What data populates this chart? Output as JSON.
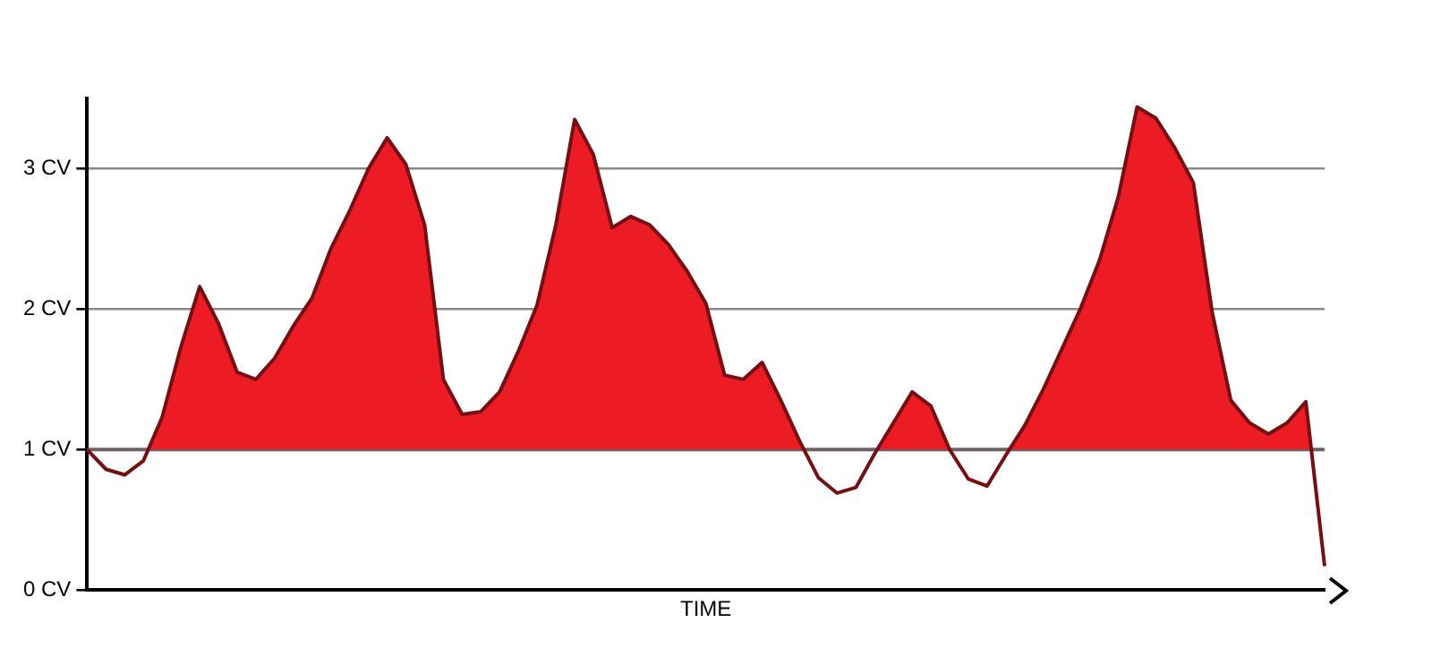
{
  "chart_data": {
    "type": "area",
    "xlabel": "TIME",
    "ylim": [
      0,
      3.5
    ],
    "yticks": [
      {
        "value": 0,
        "label": "0 CV"
      },
      {
        "value": 1,
        "label": "1 CV"
      },
      {
        "value": 2,
        "label": "2 CV"
      },
      {
        "value": 3,
        "label": "3 CV"
      }
    ],
    "tick_labels": "y",
    "grid": "y",
    "legend": false,
    "marker": "none",
    "line_style": "solid",
    "ref_lines": [
      {
        "axis": "y",
        "value": 1,
        "color": "#666666"
      }
    ],
    "categories": [
      null,
      null,
      null,
      null,
      null,
      null,
      null,
      null,
      null,
      null,
      null,
      null,
      null,
      null,
      null,
      null,
      null,
      null,
      null,
      null,
      null,
      null,
      null,
      null,
      null,
      null,
      null,
      null,
      null,
      null,
      null,
      null,
      null,
      null,
      null,
      null,
      null,
      null,
      null,
      null,
      null,
      null,
      null,
      null,
      null,
      null,
      null,
      null,
      null,
      null,
      null,
      null,
      null,
      null,
      null,
      null,
      null,
      null,
      null,
      null,
      null,
      null,
      null,
      null,
      null,
      null,
      null
    ],
    "series": [
      {
        "color": "#ed1c24",
        "values": [
          1,
          0.86,
          0.82,
          0.92,
          1.23,
          1.73,
          2.16,
          1.9,
          1.55,
          1.5,
          1.65,
          1.88,
          2.08,
          2.43,
          2.7,
          3,
          3.22,
          3.03,
          2.6,
          1.5,
          1.25,
          1.27,
          1.41,
          1.7,
          2.03,
          2.6,
          3.35,
          3.1,
          2.58,
          2.66,
          2.6,
          2.46,
          2.27,
          2.04,
          1.53,
          1.5,
          1.62,
          1.35,
          1.06,
          0.8,
          0.69,
          0.73,
          0.97,
          1.19,
          1.41,
          1.31,
          1,
          0.79,
          0.74,
          0.96,
          1.17,
          1.43,
          1.72,
          2.01,
          2.35,
          2.8,
          3.44,
          3.36,
          3.15,
          2.9,
          1.98,
          1.35,
          1.19,
          1.11,
          1.19,
          1.34,
          0.17
        ]
      }
    ]
  }
}
